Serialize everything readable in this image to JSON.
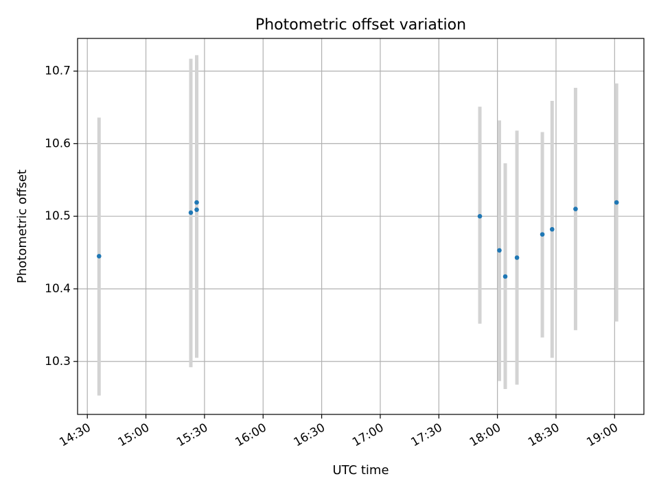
{
  "chart_data": {
    "type": "scatter",
    "title": "Photometric offset variation",
    "xlabel": "UTC time",
    "ylabel": "Photometric offset",
    "grid": true,
    "xlim": [
      "14:25",
      "19:15"
    ],
    "ylim": [
      10.227,
      10.745
    ],
    "x_ticks": [
      "14:30",
      "15:00",
      "15:30",
      "16:00",
      "16:30",
      "17:00",
      "17:30",
      "18:00",
      "18:30",
      "19:00"
    ],
    "y_ticks": [
      10.3,
      10.4,
      10.5,
      10.6,
      10.7
    ],
    "y_tick_labels": [
      "10.3",
      "10.4",
      "10.5",
      "10.6",
      "10.7"
    ],
    "point_color": "#1f77b4",
    "errorbar_color": "#d3d3d3",
    "points": [
      {
        "x": "14:36",
        "y": 10.445,
        "yerr_low": 10.253,
        "yerr_high": 10.636
      },
      {
        "x": "15:23",
        "y": 10.505,
        "yerr_low": 10.292,
        "yerr_high": 10.717
      },
      {
        "x": "15:26",
        "y": 10.519,
        "yerr_low": 10.305,
        "yerr_high": 10.722
      },
      {
        "x": "15:26",
        "y": 10.509,
        "yerr_low": 10.305,
        "yerr_high": 10.713
      },
      {
        "x": "17:51",
        "y": 10.5,
        "yerr_low": 10.352,
        "yerr_high": 10.651
      },
      {
        "x": "18:01",
        "y": 10.453,
        "yerr_low": 10.273,
        "yerr_high": 10.632
      },
      {
        "x": "18:04",
        "y": 10.417,
        "yerr_low": 10.262,
        "yerr_high": 10.573
      },
      {
        "x": "18:10",
        "y": 10.443,
        "yerr_low": 10.268,
        "yerr_high": 10.618
      },
      {
        "x": "18:23",
        "y": 10.475,
        "yerr_low": 10.333,
        "yerr_high": 10.616
      },
      {
        "x": "18:28",
        "y": 10.482,
        "yerr_low": 10.305,
        "yerr_high": 10.659
      },
      {
        "x": "18:40",
        "y": 10.51,
        "yerr_low": 10.343,
        "yerr_high": 10.677
      },
      {
        "x": "19:01",
        "y": 10.519,
        "yerr_low": 10.355,
        "yerr_high": 10.683
      }
    ]
  }
}
